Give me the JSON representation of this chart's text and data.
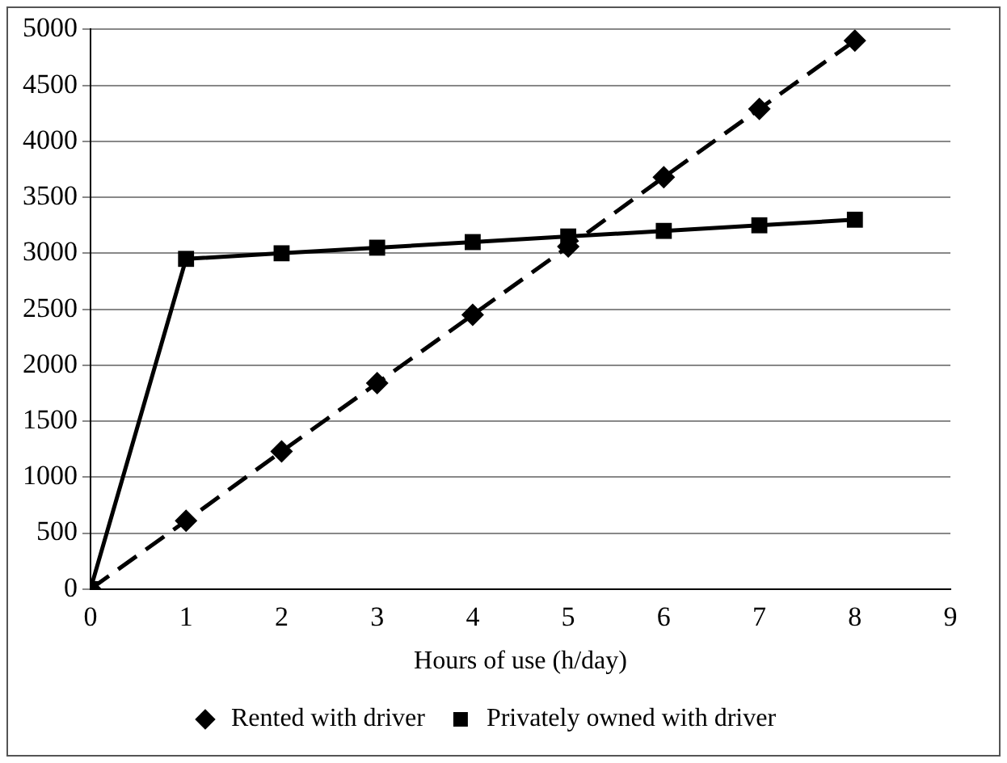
{
  "chart_data": {
    "type": "line",
    "xlabel": "Hours of use (h/day)",
    "x": [
      0,
      1,
      2,
      3,
      4,
      5,
      6,
      7,
      8
    ],
    "xlim": [
      0,
      9
    ],
    "xticks": [
      0,
      1,
      2,
      3,
      4,
      5,
      6,
      7,
      8,
      9
    ],
    "ylim": [
      0,
      5000
    ],
    "yticks": [
      0,
      500,
      1000,
      1500,
      2000,
      2500,
      3000,
      3500,
      4000,
      4500,
      5000
    ],
    "grid": "y",
    "legend": "bottom",
    "series": [
      {
        "name": "Rented with driver",
        "color": "#000000",
        "marker": "diamond",
        "line_style": "dashed",
        "values": [
          0,
          610,
          1230,
          1840,
          2450,
          3060,
          3680,
          4290,
          4900
        ]
      },
      {
        "name": "Privately owned with driver",
        "color": "#000000",
        "marker": "square",
        "line_style": "solid",
        "values": [
          0,
          2950,
          3000,
          3050,
          3100,
          3150,
          3200,
          3250,
          3300
        ]
      }
    ]
  }
}
